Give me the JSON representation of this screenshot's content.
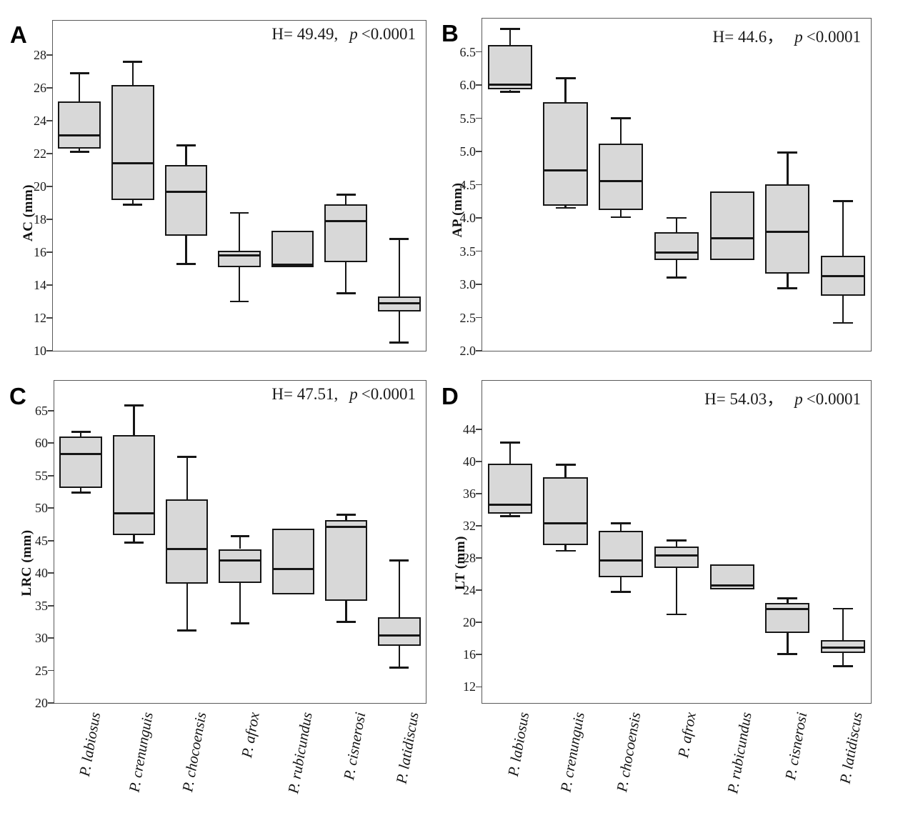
{
  "chart_data": [
    {
      "type": "boxplot",
      "panel": "A",
      "ylabel": "AC (mm)",
      "stats": {
        "h": "H= 49.49,",
        "p_var": "p",
        "p_val": "<0.0001"
      },
      "ylim": [
        10,
        30.1
      ],
      "yticks": [
        10,
        12,
        14,
        16,
        18,
        20,
        22,
        24,
        26,
        28
      ],
      "ytick_labels": [
        "10",
        "12",
        "14",
        "16",
        "18",
        "20",
        "22",
        "24",
        "26",
        "28"
      ],
      "categories": [
        "P. labiosus",
        "P. crenunguis",
        "P. chocoensis",
        "P. afrox",
        "P. rubicundus",
        "P. cisnerosi",
        "P. latidiscus"
      ],
      "show_x_labels": false,
      "series": [
        {
          "name": "P. labiosus",
          "min": 22.1,
          "q1": 22.3,
          "median": 23.1,
          "q3": 25.2,
          "max": 26.9
        },
        {
          "name": "P. crenunguis",
          "min": 18.9,
          "q1": 19.2,
          "median": 21.4,
          "q3": 26.2,
          "max": 27.6
        },
        {
          "name": "P. chocoensis",
          "min": 15.3,
          "q1": 17.0,
          "median": 19.7,
          "q3": 21.3,
          "max": 22.5
        },
        {
          "name": "P. afrox",
          "min": 13.0,
          "q1": 15.1,
          "median": 15.8,
          "q3": 16.1,
          "max": 18.4
        },
        {
          "name": "P. rubicundus",
          "min": null,
          "q1": 15.1,
          "median": 15.25,
          "q3": 17.3,
          "max": null
        },
        {
          "name": "P. cisnerosi",
          "min": 13.5,
          "q1": 15.4,
          "median": 17.9,
          "q3": 18.9,
          "max": 19.5
        },
        {
          "name": "P. latidiscus",
          "min": 10.5,
          "q1": 12.4,
          "median": 12.9,
          "q3": 13.3,
          "max": 16.8
        }
      ]
    },
    {
      "type": "boxplot",
      "panel": "B",
      "ylabel": "AP (mm)",
      "stats": {
        "h": "H= 44.6，",
        "p_var": "p",
        "p_val": "<0.0001"
      },
      "ylim": [
        2.0,
        7.0
      ],
      "yticks": [
        2.0,
        2.5,
        3.0,
        3.5,
        4.0,
        4.5,
        5.0,
        5.5,
        6.0,
        6.5
      ],
      "ytick_labels": [
        "2.0",
        "2.5",
        "3.0",
        "3.5",
        "4.0",
        "4.5",
        "5.0",
        "5.5",
        "6.0",
        "6.5"
      ],
      "categories": [
        "P. labiosus",
        "P. crenunguis",
        "P. chocoensis",
        "P. afrox",
        "P. rubicundus",
        "P. cisnerosi",
        "P. latidiscus"
      ],
      "show_x_labels": false,
      "series": [
        {
          "name": "P. labiosus",
          "min": 5.9,
          "q1": 5.93,
          "median": 6.01,
          "q3": 6.6,
          "max": 6.84
        },
        {
          "name": "P. crenunguis",
          "min": 4.15,
          "q1": 4.18,
          "median": 4.72,
          "q3": 5.74,
          "max": 6.1
        },
        {
          "name": "P. chocoensis",
          "min": 4.01,
          "q1": 4.12,
          "median": 4.55,
          "q3": 5.12,
          "max": 5.5
        },
        {
          "name": "P. afrox",
          "min": 3.1,
          "q1": 3.37,
          "median": 3.48,
          "q3": 3.79,
          "max": 4.0
        },
        {
          "name": "P. rubicundus",
          "min": null,
          "q1": 3.37,
          "median": 3.69,
          "q3": 4.4,
          "max": null
        },
        {
          "name": "P. cisnerosi",
          "min": 2.94,
          "q1": 3.16,
          "median": 3.79,
          "q3": 4.51,
          "max": 4.98
        },
        {
          "name": "P. latidiscus",
          "min": 2.42,
          "q1": 2.83,
          "median": 3.12,
          "q3": 3.43,
          "max": 4.25
        }
      ]
    },
    {
      "type": "boxplot",
      "panel": "C",
      "ylabel": "LRC (mm)",
      "stats": {
        "h": "H= 47.51,",
        "p_var": "p",
        "p_val": "<0.0001"
      },
      "ylim": [
        20,
        69.6
      ],
      "yticks": [
        20,
        25,
        30,
        35,
        40,
        45,
        50,
        55,
        60,
        65
      ],
      "ytick_labels": [
        "20",
        "25",
        "30",
        "35",
        "40",
        "45",
        "50",
        "55",
        "60",
        "65"
      ],
      "categories": [
        "P. labiosus",
        "P. crenunguis",
        "P. chocoensis",
        "P. afrox",
        "P. rubicundus",
        "P. cisnerosi",
        "P. latidiscus"
      ],
      "show_x_labels": true,
      "series": [
        {
          "name": "P. labiosus",
          "min": 52.4,
          "q1": 53.1,
          "median": 58.3,
          "q3": 61.0,
          "max": 61.7
        },
        {
          "name": "P. crenunguis",
          "min": 44.7,
          "q1": 45.8,
          "median": 49.2,
          "q3": 61.2,
          "max": 65.8
        },
        {
          "name": "P. chocoensis",
          "min": 31.2,
          "q1": 38.4,
          "median": 43.7,
          "q3": 51.3,
          "max": 57.9
        },
        {
          "name": "P. afrox",
          "min": 32.3,
          "q1": 38.5,
          "median": 41.9,
          "q3": 43.7,
          "max": 45.7
        },
        {
          "name": "P. rubicundus",
          "min": null,
          "q1": 36.7,
          "median": 40.6,
          "q3": 46.8,
          "max": null
        },
        {
          "name": "P. cisnerosi",
          "min": 32.5,
          "q1": 35.7,
          "median": 47.1,
          "q3": 48.1,
          "max": 49.0
        },
        {
          "name": "P. latidiscus",
          "min": 25.4,
          "q1": 28.8,
          "median": 30.4,
          "q3": 33.2,
          "max": 41.9
        }
      ]
    },
    {
      "type": "boxplot",
      "panel": "D",
      "ylabel": "LT (mm)",
      "stats": {
        "h": "H= 54.03，",
        "p_var": "p",
        "p_val": "<0.0001"
      },
      "ylim": [
        10,
        50
      ],
      "yticks": [
        12,
        16,
        20,
        24,
        28,
        32,
        36,
        40,
        44
      ],
      "ytick_labels": [
        "12",
        "16",
        "20",
        "24",
        "28",
        "32",
        "36",
        "40",
        "44"
      ],
      "categories": [
        "P. labiosus",
        "P. crenunguis",
        "P. chocoensis",
        "P. afrox",
        "P. rubicundus",
        "P. cisnerosi",
        "P. latidiscus"
      ],
      "show_x_labels": true,
      "series": [
        {
          "name": "P. labiosus",
          "min": 33.2,
          "q1": 33.5,
          "median": 34.6,
          "q3": 39.7,
          "max": 42.3
        },
        {
          "name": "P. crenunguis",
          "min": 28.9,
          "q1": 29.6,
          "median": 32.3,
          "q3": 38.0,
          "max": 39.6
        },
        {
          "name": "P. chocoensis",
          "min": 23.8,
          "q1": 25.6,
          "median": 27.7,
          "q3": 31.4,
          "max": 32.3
        },
        {
          "name": "P. afrox",
          "min": 21.0,
          "q1": 26.8,
          "median": 28.3,
          "q3": 29.4,
          "max": 30.2
        },
        {
          "name": "P. rubicundus",
          "min": null,
          "q1": 24.1,
          "median": 24.6,
          "q3": 27.2,
          "max": null
        },
        {
          "name": "P. cisnerosi",
          "min": 16.1,
          "q1": 18.7,
          "median": 21.7,
          "q3": 22.4,
          "max": 23.0
        },
        {
          "name": "P. latidiscus",
          "min": 14.6,
          "q1": 16.2,
          "median": 16.9,
          "q3": 17.8,
          "max": 21.7
        }
      ]
    }
  ]
}
